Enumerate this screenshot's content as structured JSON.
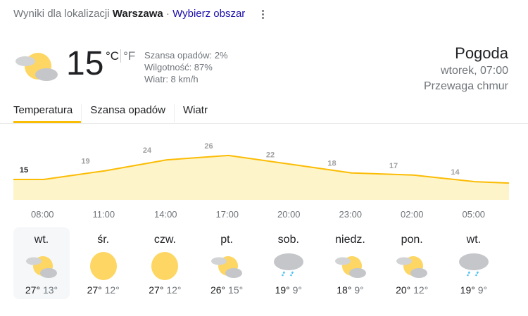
{
  "header": {
    "prefix": "Wyniki dla lokalizacji",
    "location": "Warszawa",
    "sep": "·",
    "choose_area": "Wybierz obszar"
  },
  "current": {
    "temperature": "15",
    "unit_c": "°C",
    "unit_f": "°F",
    "precip": "Szansa opadów: 2%",
    "humidity": "Wilgotność: 87%",
    "wind": "Wiatr: 8 km/h",
    "icon": "partly-cloudy-icon"
  },
  "summary": {
    "title": "Pogoda",
    "time": "wtorek, 07:00",
    "condition": "Przewaga chmur"
  },
  "tabs": [
    {
      "label": "Temperatura",
      "active": true
    },
    {
      "label": "Szansa opadów"
    },
    {
      "label": "Wiatr"
    }
  ],
  "colors": {
    "accent": "#fbbc04",
    "fill": "#fef4c9"
  },
  "chart_data": {
    "type": "area",
    "categories": [
      "08:00",
      "11:00",
      "14:00",
      "17:00",
      "20:00",
      "23:00",
      "02:00",
      "05:00"
    ],
    "values": [
      15,
      19,
      24,
      26,
      22,
      18,
      17,
      14
    ],
    "labels": [
      "15",
      "19",
      "24",
      "26",
      "22",
      "18",
      "17",
      "14"
    ]
  },
  "days": [
    {
      "name": "wt.",
      "icon": "partly-cloudy-icon",
      "high": "27°",
      "low": "13°",
      "selected": true
    },
    {
      "name": "śr.",
      "icon": "sunny-icon",
      "high": "27°",
      "low": "12°"
    },
    {
      "name": "czw.",
      "icon": "sunny-icon",
      "high": "27°",
      "low": "12°"
    },
    {
      "name": "pt.",
      "icon": "partly-cloudy-icon",
      "high": "26°",
      "low": "15°"
    },
    {
      "name": "sob.",
      "icon": "rain-icon",
      "high": "19°",
      "low": "9°"
    },
    {
      "name": "niedz.",
      "icon": "partly-cloudy-icon",
      "high": "18°",
      "low": "9°"
    },
    {
      "name": "pon.",
      "icon": "partly-cloudy-icon",
      "high": "20°",
      "low": "12°"
    },
    {
      "name": "wt.",
      "icon": "rain-icon",
      "high": "19°",
      "low": "9°"
    }
  ]
}
